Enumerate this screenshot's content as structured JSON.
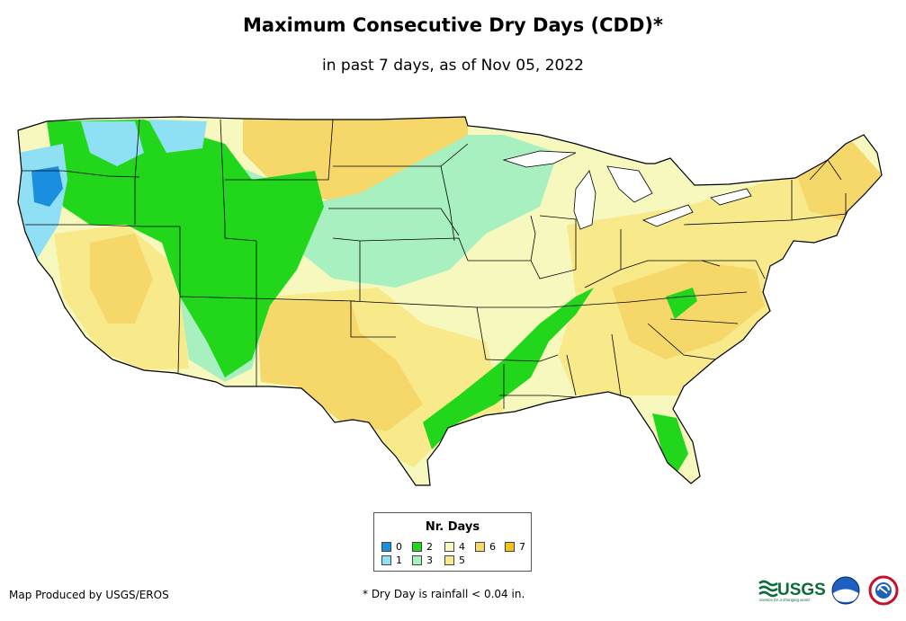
{
  "title": "Maximum Consecutive Dry Days (CDD)*",
  "subtitle": "in past 7 days, as of Nov 05, 2022",
  "legend": {
    "title": "Nr. Days",
    "items": [
      {
        "label": "0",
        "color": "#1a8fe0"
      },
      {
        "label": "1",
        "color": "#8fe0f5"
      },
      {
        "label": "2",
        "color": "#22d61c"
      },
      {
        "label": "3",
        "color": "#a8f0c0"
      },
      {
        "label": "4",
        "color": "#f7f8bd"
      },
      {
        "label": "5",
        "color": "#f8e98a"
      },
      {
        "label": "6",
        "color": "#f6d76a"
      },
      {
        "label": "7",
        "color": "#f5c21c"
      }
    ]
  },
  "credit": "Map Produced by USGS/EROS",
  "footnote": "* Dry Day is rainfall < 0.04 in.",
  "logos": {
    "usgs": "USGS",
    "usgs_tagline": "science for a changing world",
    "noaa": "noaa"
  }
}
